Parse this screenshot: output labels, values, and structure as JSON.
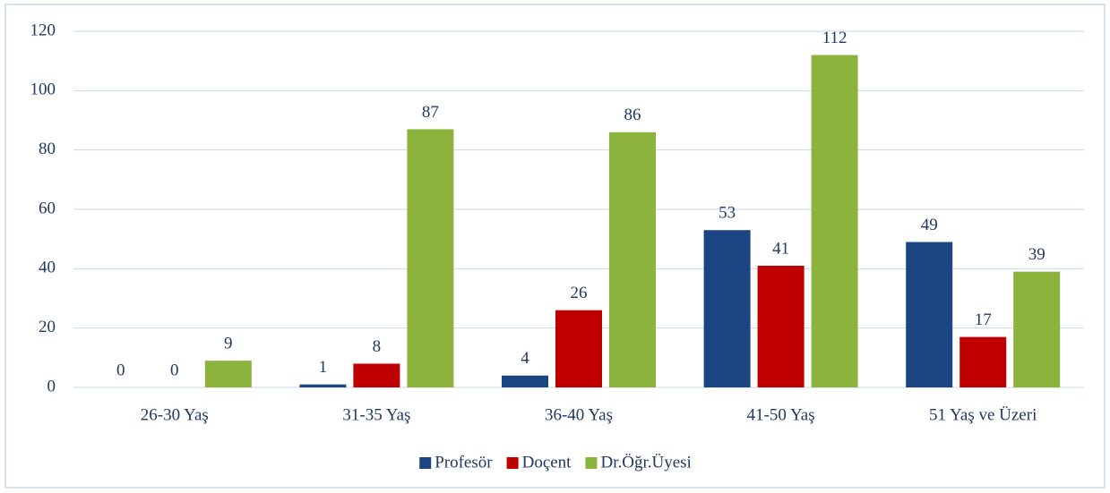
{
  "chart_data": {
    "type": "bar",
    "categories": [
      "26-30 Yaş",
      "31-35 Yaş",
      "36-40 Yaş",
      "41-50 Yaş",
      "51 Yaş ve Üzeri"
    ],
    "series": [
      {
        "name": "Profesör",
        "color": "#1b4483",
        "values": [
          0,
          1,
          4,
          53,
          49
        ]
      },
      {
        "name": "Doçent",
        "color": "#c00000",
        "values": [
          0,
          8,
          26,
          41,
          17
        ]
      },
      {
        "name": "Dr.Öğr.Üyesi",
        "color": "#8cb43c",
        "values": [
          9,
          87,
          86,
          112,
          39
        ]
      }
    ],
    "ylim": [
      0,
      120
    ],
    "yticks": [
      0,
      20,
      40,
      60,
      80,
      100,
      120
    ],
    "grid": true,
    "legend": "bottom"
  }
}
